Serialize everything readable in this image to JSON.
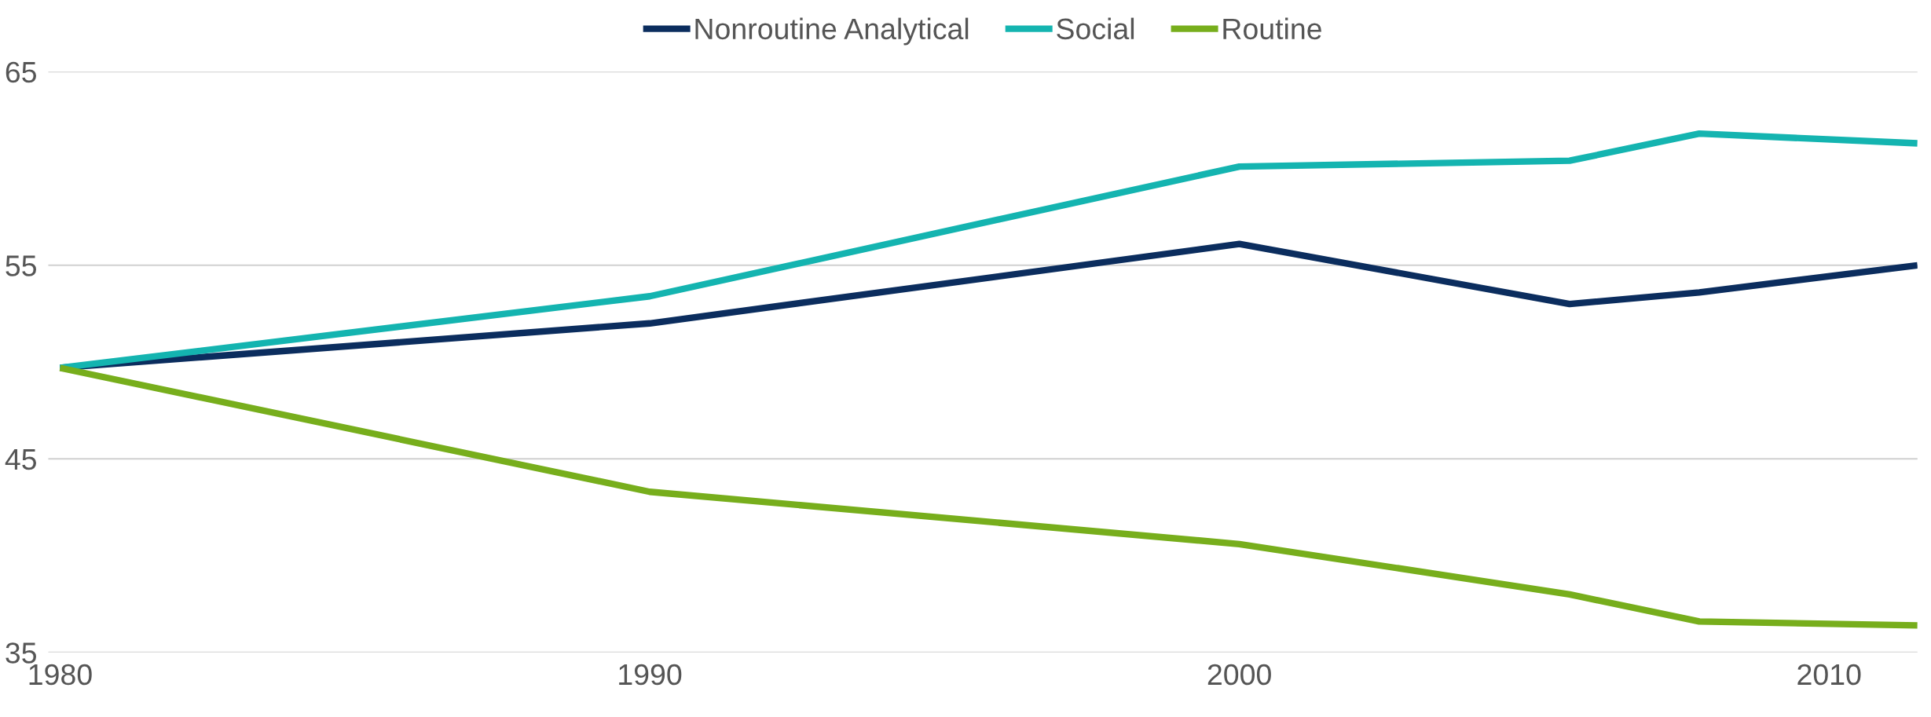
{
  "chart_data": {
    "type": "line",
    "x": [
      1980,
      1990,
      2000,
      2005.6,
      2007.8,
      2011.5
    ],
    "series": [
      {
        "name": "Nonroutine Analytical",
        "color": "#0b2d5e",
        "values": [
          49.7,
          52.0,
          56.1,
          53.0,
          53.6,
          55.0
        ]
      },
      {
        "name": "Social",
        "color": "#14b4b0",
        "values": [
          49.7,
          53.4,
          60.1,
          60.4,
          61.8,
          61.3
        ]
      },
      {
        "name": "Routine",
        "color": "#77ae1c",
        "values": [
          49.7,
          43.3,
          40.6,
          38.0,
          36.6,
          36.4
        ]
      }
    ],
    "xlim": [
      1979.8,
      2011.5
    ],
    "xticks": [
      1980,
      1990,
      2000,
      2010
    ],
    "ylim": [
      35,
      65
    ],
    "yticks": [
      35,
      45,
      55,
      65
    ],
    "grid": "y",
    "legend": "top",
    "marker": "none",
    "line_style": "solid"
  }
}
